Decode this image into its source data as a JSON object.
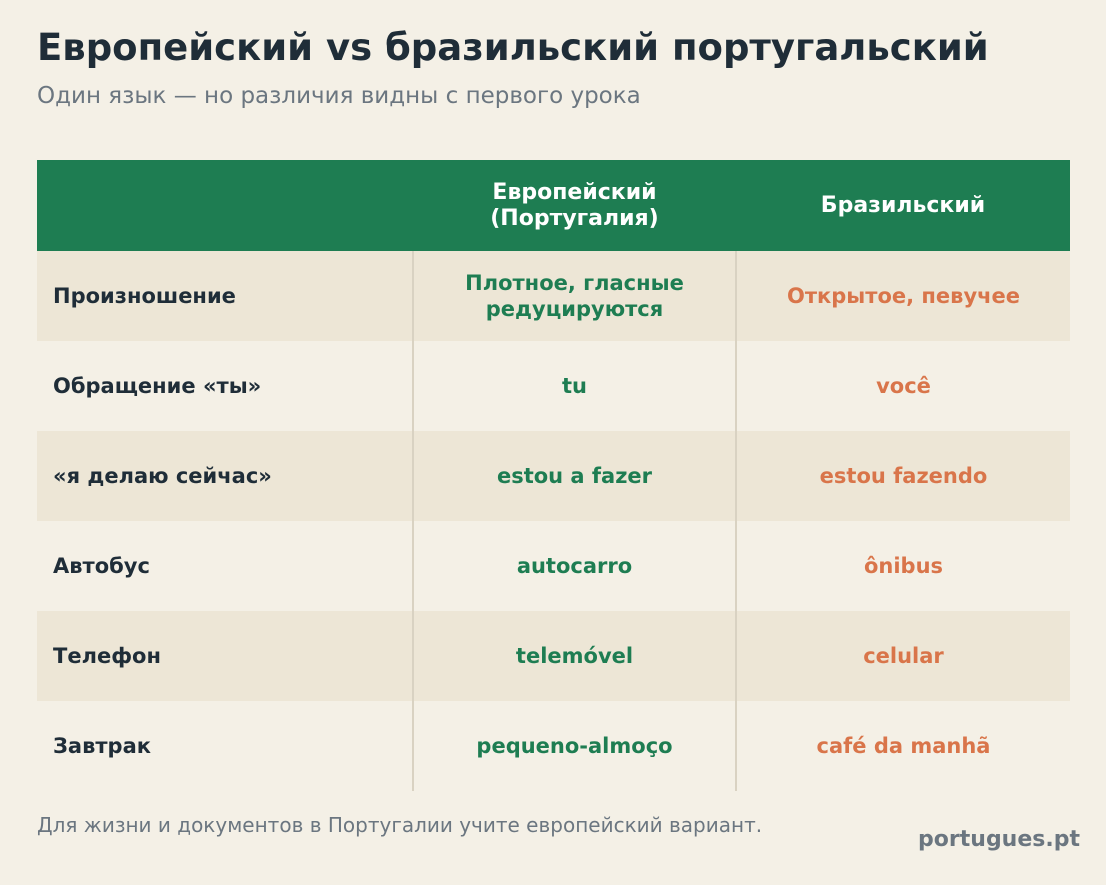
{
  "header": {
    "title": "Европейский vs бразильский португальский",
    "subtitle": "Один язык — но различия видны с первого урока"
  },
  "table": {
    "columns": [
      "Европейский (Португалия)",
      "Бразильский"
    ],
    "rows": [
      [
        "Произношение",
        "Плотное, гласные редуцируются",
        "Открытое, певучее"
      ],
      [
        "Обращение «ты»",
        "tu",
        "você"
      ],
      [
        "«я делаю сейчас»",
        "estou a fazer",
        "estou fazendo"
      ],
      [
        "Автобус",
        "autocarro",
        "ônibus"
      ],
      [
        "Телефон",
        "telemóvel",
        "celular"
      ],
      [
        "Завтрак",
        "pequeno-almoço",
        "café da manhã"
      ]
    ]
  },
  "footer": {
    "note": "Для жизни и документов в Португалии учите европейский вариант.",
    "brand": "portugues.pt"
  }
}
